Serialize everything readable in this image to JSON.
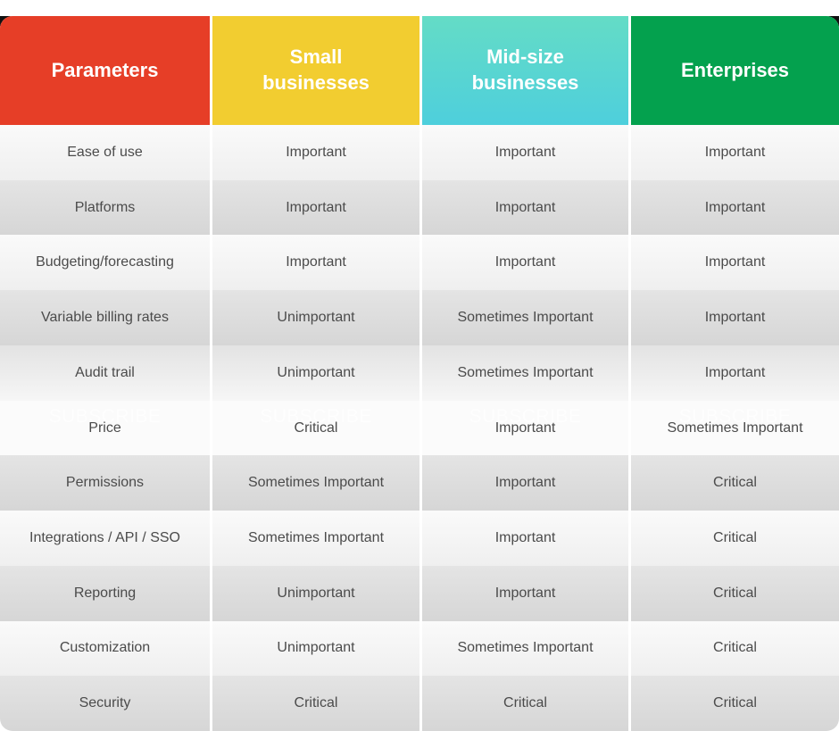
{
  "colors": {
    "parameters_header": "#e63e27",
    "small_businesses_header": "#f2cd30",
    "mid_size_header_top": "#64dcc6",
    "mid_size_header_bottom": "#4ecfdc",
    "enterprises_header": "#04a14e",
    "row_light": "#f5f5f5",
    "row_dark": "#dddddd",
    "body_text": "#4b4b4b",
    "header_text": "#ffffff"
  },
  "table": {
    "watermark": "SUBSCRIBE",
    "columns": [
      {
        "label": "Parameters"
      },
      {
        "label": "Small businesses"
      },
      {
        "label": "Mid-size businesses"
      },
      {
        "label": "Enterprises"
      }
    ],
    "rows": [
      {
        "shade": "light",
        "cells": [
          "Ease of use",
          "Important",
          "Important",
          "Important"
        ]
      },
      {
        "shade": "dark",
        "cells": [
          "Platforms",
          "Important",
          "Important",
          "Important"
        ]
      },
      {
        "shade": "light",
        "cells": [
          "Budgeting/forecasting",
          "Important",
          "Important",
          "Important"
        ]
      },
      {
        "shade": "dark",
        "cells": [
          "Variable billing rates",
          "Unimportant",
          "Sometimes Important",
          "Important"
        ]
      },
      {
        "shade": "fade",
        "cells": [
          "Audit trail",
          "Unimportant",
          "Sometimes Important",
          "Important"
        ]
      },
      {
        "shade": "white",
        "cells": [
          "Price",
          "Critical",
          "Important",
          "Sometimes Important"
        ]
      },
      {
        "shade": "dark",
        "cells": [
          "Permissions",
          "Sometimes Important",
          "Important",
          "Critical"
        ]
      },
      {
        "shade": "light",
        "cells": [
          "Integrations / API / SSO",
          "Sometimes Important",
          "Important",
          "Critical"
        ]
      },
      {
        "shade": "dark",
        "cells": [
          "Reporting",
          "Unimportant",
          "Important",
          "Critical"
        ]
      },
      {
        "shade": "light",
        "cells": [
          "Customization",
          "Unimportant",
          "Sometimes Important",
          "Critical"
        ]
      },
      {
        "shade": "dark",
        "cells": [
          "Security",
          "Critical",
          "Critical",
          "Critical"
        ]
      }
    ]
  }
}
